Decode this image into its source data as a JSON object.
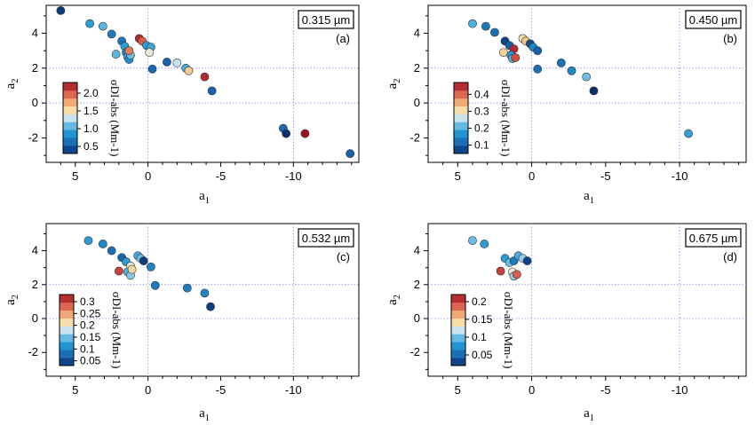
{
  "chart_data": [
    {
      "type": "scatter",
      "panel_label": "(a)",
      "wavelength_label": "0.315 µm",
      "xlabel": "a1",
      "ylabel": "a2",
      "xlim": [
        7,
        -14.5
      ],
      "ylim": [
        -3.4,
        5.6
      ],
      "xticks": [
        5,
        0,
        -5,
        -10
      ],
      "yticks": [
        4,
        2,
        0,
        -2
      ],
      "x_reversed": true,
      "grid": "dotted, at x = 0, -10 and y = 0, 2",
      "colorbar": {
        "title": "σDI-abs (Mm-1)",
        "ticks": [
          0.5,
          1.0,
          1.5,
          2.0
        ],
        "range": [
          0.3,
          2.3
        ]
      },
      "points": [
        {
          "x": 6.0,
          "y": 5.3,
          "v": 0.35
        },
        {
          "x": 4.0,
          "y": 4.55,
          "v": 0.9
        },
        {
          "x": 3.1,
          "y": 4.4,
          "v": 1.05
        },
        {
          "x": 2.5,
          "y": 3.95,
          "v": 0.7
        },
        {
          "x": 1.8,
          "y": 3.55,
          "v": 0.65
        },
        {
          "x": 1.6,
          "y": 3.25,
          "v": 0.9
        },
        {
          "x": 2.2,
          "y": 2.8,
          "v": 1.05
        },
        {
          "x": 1.5,
          "y": 2.9,
          "v": 0.75
        },
        {
          "x": 1.4,
          "y": 2.65,
          "v": 0.95
        },
        {
          "x": 1.3,
          "y": 2.5,
          "v": 0.8
        },
        {
          "x": 1.2,
          "y": 2.75,
          "v": 1.1
        },
        {
          "x": 1.3,
          "y": 3.0,
          "v": 1.9
        },
        {
          "x": 0.6,
          "y": 3.7,
          "v": 2.2
        },
        {
          "x": 0.4,
          "y": 3.55,
          "v": 2.0
        },
        {
          "x": 0.1,
          "y": 3.3,
          "v": 0.9
        },
        {
          "x": -0.2,
          "y": 3.2,
          "v": 0.95
        },
        {
          "x": -0.1,
          "y": 2.9,
          "v": 1.4
        },
        {
          "x": -0.3,
          "y": 1.95,
          "v": 0.6
        },
        {
          "x": -1.3,
          "y": 2.35,
          "v": 0.55
        },
        {
          "x": -2.0,
          "y": 2.3,
          "v": 1.3
        },
        {
          "x": -2.6,
          "y": 2.0,
          "v": 1.0
        },
        {
          "x": -2.8,
          "y": 1.85,
          "v": 1.6
        },
        {
          "x": -3.9,
          "y": 1.5,
          "v": 2.2
        },
        {
          "x": -4.4,
          "y": 0.7,
          "v": 0.55
        },
        {
          "x": -9.3,
          "y": -1.45,
          "v": 0.6
        },
        {
          "x": -9.5,
          "y": -1.75,
          "v": 0.3
        },
        {
          "x": -10.8,
          "y": -1.75,
          "v": 2.3
        },
        {
          "x": -13.9,
          "y": -2.9,
          "v": 0.55
        }
      ]
    },
    {
      "type": "scatter",
      "panel_label": "(b)",
      "wavelength_label": "0.450 µm",
      "xlabel": "a1",
      "ylabel": "a2",
      "xlim": [
        7,
        -14.5
      ],
      "ylim": [
        -3.4,
        5.6
      ],
      "xticks": [
        5,
        0,
        -5,
        -10
      ],
      "yticks": [
        4,
        2,
        0,
        -2
      ],
      "x_reversed": true,
      "grid": "dotted, at x = 0, -10 and y = 0, 2",
      "colorbar": {
        "title": "σDI-abs (Mm-1)",
        "ticks": [
          0.1,
          0.2,
          0.3,
          0.4
        ],
        "range": [
          0.05,
          0.47
        ]
      },
      "points": [
        {
          "x": 4.0,
          "y": 4.55,
          "v": 0.2
        },
        {
          "x": 3.1,
          "y": 4.4,
          "v": 0.13
        },
        {
          "x": 2.5,
          "y": 4.05,
          "v": 0.12
        },
        {
          "x": 1.8,
          "y": 3.55,
          "v": 0.07
        },
        {
          "x": 1.5,
          "y": 3.3,
          "v": 0.1
        },
        {
          "x": 1.2,
          "y": 3.1,
          "v": 0.45
        },
        {
          "x": 1.9,
          "y": 2.9,
          "v": 0.32
        },
        {
          "x": 1.4,
          "y": 2.75,
          "v": 0.17
        },
        {
          "x": 1.3,
          "y": 2.55,
          "v": 0.2
        },
        {
          "x": 1.1,
          "y": 2.6,
          "v": 0.42
        },
        {
          "x": 0.6,
          "y": 3.7,
          "v": 0.3
        },
        {
          "x": 0.4,
          "y": 3.55,
          "v": 0.33
        },
        {
          "x": 0.1,
          "y": 3.4,
          "v": 0.08
        },
        {
          "x": -0.1,
          "y": 3.2,
          "v": 0.15
        },
        {
          "x": -0.4,
          "y": 3.0,
          "v": 0.1
        },
        {
          "x": -0.4,
          "y": 1.95,
          "v": 0.12
        },
        {
          "x": -2.0,
          "y": 2.3,
          "v": 0.12
        },
        {
          "x": -2.7,
          "y": 1.85,
          "v": 0.15
        },
        {
          "x": -3.7,
          "y": 1.5,
          "v": 0.22
        },
        {
          "x": -4.2,
          "y": 0.7,
          "v": 0.05
        },
        {
          "x": -10.6,
          "y": -1.75,
          "v": 0.18
        }
      ]
    },
    {
      "type": "scatter",
      "panel_label": "(c)",
      "wavelength_label": "0.532 µm",
      "xlabel": "a1",
      "ylabel": "a2",
      "xlim": [
        7,
        -14.5
      ],
      "ylim": [
        -3.4,
        5.6
      ],
      "xticks": [
        5,
        0,
        -5,
        -10
      ],
      "yticks": [
        4,
        2,
        0,
        -2
      ],
      "x_reversed": true,
      "grid": "dotted, at x = 0, -10 and y = 0, 2",
      "colorbar": {
        "title": "σDI-abs (Mm-1)",
        "ticks": [
          0.05,
          0.1,
          0.15,
          0.2,
          0.25,
          0.3
        ],
        "range": [
          0.03,
          0.33
        ]
      },
      "points": [
        {
          "x": 4.1,
          "y": 4.6,
          "v": 0.12
        },
        {
          "x": 3.1,
          "y": 4.4,
          "v": 0.1
        },
        {
          "x": 2.5,
          "y": 4.0,
          "v": 0.08
        },
        {
          "x": 1.8,
          "y": 3.6,
          "v": 0.07
        },
        {
          "x": 1.5,
          "y": 3.35,
          "v": 0.12
        },
        {
          "x": 1.2,
          "y": 3.1,
          "v": 0.2
        },
        {
          "x": 2.0,
          "y": 2.8,
          "v": 0.3
        },
        {
          "x": 1.4,
          "y": 2.75,
          "v": 0.14
        },
        {
          "x": 1.2,
          "y": 2.55,
          "v": 0.16
        },
        {
          "x": 1.1,
          "y": 2.9,
          "v": 0.22
        },
        {
          "x": 0.7,
          "y": 3.7,
          "v": 0.13
        },
        {
          "x": 0.5,
          "y": 3.55,
          "v": 0.15
        },
        {
          "x": 0.3,
          "y": 3.4,
          "v": 0.04
        },
        {
          "x": -0.2,
          "y": 3.05,
          "v": 0.1
        },
        {
          "x": -0.5,
          "y": 1.95,
          "v": 0.09
        },
        {
          "x": -2.7,
          "y": 1.8,
          "v": 0.09
        },
        {
          "x": -3.9,
          "y": 1.5,
          "v": 0.1
        },
        {
          "x": -4.3,
          "y": 0.7,
          "v": 0.04
        }
      ]
    },
    {
      "type": "scatter",
      "panel_label": "(d)",
      "wavelength_label": "0.675 µm",
      "xlabel": "a1",
      "ylabel": "a2",
      "xlim": [
        7,
        -14.5
      ],
      "ylim": [
        -3.4,
        5.6
      ],
      "xticks": [
        5,
        0,
        -5,
        -10
      ],
      "yticks": [
        4,
        2,
        0,
        -2
      ],
      "x_reversed": true,
      "grid": "dotted, at x = 0, -10 and y = 0, 2",
      "colorbar": {
        "title": "σDI-abs (Mm-1)",
        "ticks": [
          0.05,
          0.1,
          0.15,
          0.2
        ],
        "range": [
          0.02,
          0.22
        ]
      },
      "points": [
        {
          "x": 4.0,
          "y": 4.6,
          "v": 0.1
        },
        {
          "x": 3.2,
          "y": 4.4,
          "v": 0.08
        },
        {
          "x": 1.8,
          "y": 3.55,
          "v": 0.08
        },
        {
          "x": 1.5,
          "y": 3.3,
          "v": 0.1
        },
        {
          "x": 1.2,
          "y": 3.4,
          "v": 0.06
        },
        {
          "x": 2.1,
          "y": 2.8,
          "v": 0.2
        },
        {
          "x": 1.3,
          "y": 2.75,
          "v": 0.13
        },
        {
          "x": 1.2,
          "y": 2.5,
          "v": 0.11
        },
        {
          "x": 1.0,
          "y": 2.6,
          "v": 0.19
        },
        {
          "x": 0.9,
          "y": 3.7,
          "v": 0.09
        },
        {
          "x": 0.6,
          "y": 3.55,
          "v": 0.11
        },
        {
          "x": 0.3,
          "y": 3.4,
          "v": 0.03
        }
      ]
    }
  ]
}
